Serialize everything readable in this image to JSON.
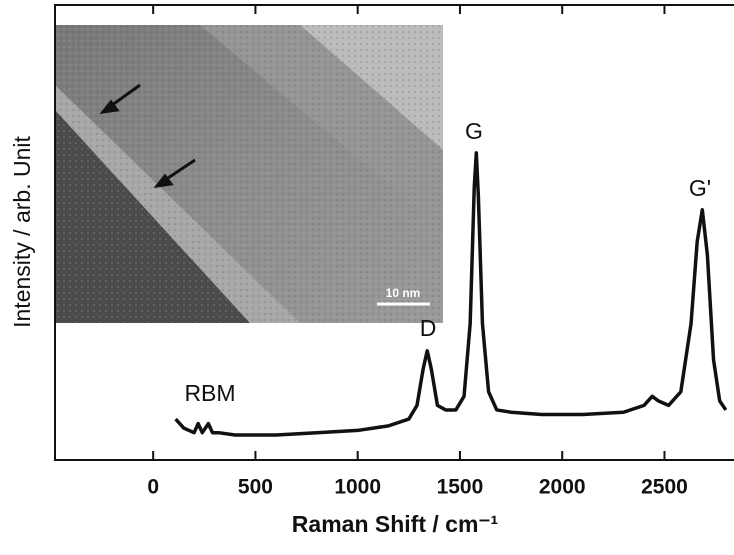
{
  "chart_data": {
    "type": "line",
    "x_label": "Raman Shift / cm⁻¹",
    "y_label": "Intensity / arb. Unit",
    "x": [
      110,
      150,
      200,
      220,
      240,
      270,
      290,
      320,
      400,
      500,
      600,
      800,
      1000,
      1150,
      1250,
      1290,
      1320,
      1340,
      1360,
      1390,
      1430,
      1480,
      1520,
      1550,
      1570,
      1580,
      1590,
      1610,
      1640,
      1680,
      1750,
      1900,
      2100,
      2300,
      2400,
      2440,
      2470,
      2520,
      2580,
      2630,
      2660,
      2685,
      2710,
      2740,
      2770,
      2800
    ],
    "series": [
      {
        "color": "#111111",
        "values": [
          9,
          7,
          6,
          8,
          6,
          8,
          6,
          6,
          5.5,
          5.5,
          5.5,
          6,
          6.5,
          7.5,
          9,
          12,
          20,
          24,
          20,
          12,
          11,
          11,
          14,
          30,
          60,
          67.5,
          58,
          30,
          15,
          11,
          10.5,
          10,
          10,
          10.5,
          12,
          14,
          13,
          12,
          15,
          30,
          48,
          55,
          45,
          22,
          13,
          11
        ]
      }
    ],
    "xlim": [
      -480,
      2840
    ],
    "xticks": [
      0,
      500,
      1000,
      1500,
      2000,
      2500
    ],
    "ylim": [
      0,
      100
    ],
    "annotations": [
      "RBM",
      "D",
      "G",
      "G'"
    ],
    "inset_scale_label": "10 nm"
  }
}
